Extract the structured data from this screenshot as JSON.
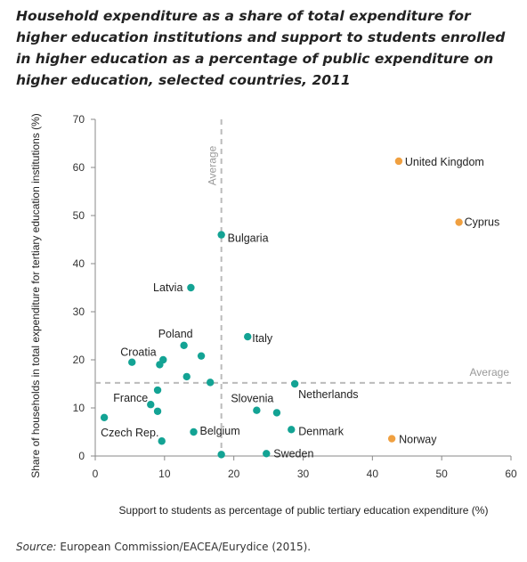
{
  "title": "Household expenditure as a share of total expenditure for higher education institutions and support to students enrolled in higher education as a percentage of public expenditure on higher education, selected countries, 2011",
  "source": {
    "label": "Source:",
    "text": "European Commission/EACEA/Eurydice (2015)."
  },
  "colors": {
    "teal": "#13a394",
    "orange": "#f0a040",
    "avg_line": "#bbbbbb",
    "axis": "#888888"
  },
  "chart_data": {
    "type": "scatter",
    "xlabel": "Support to students as percentage of public tertiary education expenditure (%)",
    "ylabel": "Share of households in total expenditure for tertiary education institutions (%)",
    "xlim": [
      0,
      60
    ],
    "ylim": [
      0,
      70
    ],
    "xticks": [
      0,
      10,
      20,
      30,
      40,
      50,
      60
    ],
    "yticks": [
      0,
      10,
      20,
      30,
      40,
      50,
      60,
      70
    ],
    "grid": false,
    "averages": {
      "x": 18.2,
      "y": 15.2,
      "x_label": "Average",
      "y_label": "Average"
    },
    "points": [
      {
        "x": 43.8,
        "y": 61.3,
        "label": "United Kingdom",
        "color": "orange"
      },
      {
        "x": 52.5,
        "y": 48.6,
        "label": "Cyprus",
        "color": "orange"
      },
      {
        "x": 42.8,
        "y": 3.6,
        "label": "Norway",
        "color": "orange"
      },
      {
        "x": 18.2,
        "y": 46.0,
        "label": "Bulgaria",
        "color": "teal"
      },
      {
        "x": 13.8,
        "y": 35.0,
        "label": "Latvia",
        "color": "teal"
      },
      {
        "x": 22.0,
        "y": 24.8,
        "label": "Italy",
        "color": "teal"
      },
      {
        "x": 12.8,
        "y": 23.0,
        "label": "Poland",
        "color": "teal"
      },
      {
        "x": 5.3,
        "y": 19.5,
        "label": "Croatia",
        "color": "teal"
      },
      {
        "x": 28.8,
        "y": 15.0,
        "label": "Netherlands",
        "color": "teal"
      },
      {
        "x": 23.3,
        "y": 9.5,
        "label": "Slovenia",
        "color": "teal"
      },
      {
        "x": 8.0,
        "y": 10.7,
        "label": "France",
        "color": "teal"
      },
      {
        "x": 28.3,
        "y": 5.5,
        "label": "Denmark",
        "color": "teal"
      },
      {
        "x": 1.3,
        "y": 8.0,
        "label": "Czech Rep.",
        "color": "teal"
      },
      {
        "x": 14.2,
        "y": 5.0,
        "label": "Belgium",
        "color": "teal"
      },
      {
        "x": 24.7,
        "y": 0.5,
        "label": "Sweden",
        "color": "teal"
      },
      {
        "x": 15.3,
        "y": 20.8,
        "label": "",
        "color": "teal"
      },
      {
        "x": 9.8,
        "y": 20.0,
        "label": "",
        "color": "teal"
      },
      {
        "x": 9.3,
        "y": 19.0,
        "label": "",
        "color": "teal"
      },
      {
        "x": 13.2,
        "y": 16.5,
        "label": "",
        "color": "teal"
      },
      {
        "x": 16.6,
        "y": 15.3,
        "label": "",
        "color": "teal"
      },
      {
        "x": 9.0,
        "y": 13.7,
        "label": "",
        "color": "teal"
      },
      {
        "x": 9.0,
        "y": 9.3,
        "label": "",
        "color": "teal"
      },
      {
        "x": 26.2,
        "y": 9.0,
        "label": "",
        "color": "teal"
      },
      {
        "x": 9.6,
        "y": 3.1,
        "label": "",
        "color": "teal"
      },
      {
        "x": 18.2,
        "y": 0.3,
        "label": "",
        "color": "teal"
      }
    ]
  }
}
